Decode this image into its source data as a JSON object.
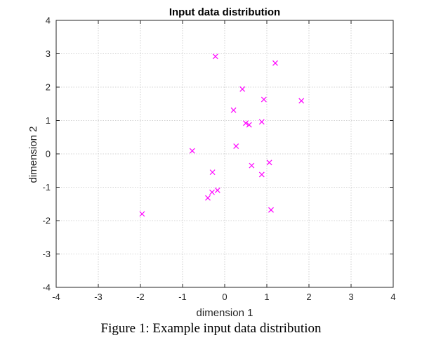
{
  "chart_data": {
    "type": "scatter",
    "title": "Input data distribution",
    "xlabel": "dimension 1",
    "ylabel": "dimension 2",
    "xlim": [
      -4,
      4
    ],
    "ylim": [
      -4,
      4
    ],
    "xticks": [
      -4,
      -3,
      -2,
      -1,
      0,
      1,
      2,
      3,
      4
    ],
    "yticks": [
      -4,
      -3,
      -2,
      -1,
      0,
      1,
      2,
      3,
      4
    ],
    "grid": true,
    "marker": "x",
    "marker_color": "#ff00ff",
    "series": [
      {
        "points": [
          {
            "x": -0.22,
            "y": 2.92
          },
          {
            "x": 1.2,
            "y": 2.72
          },
          {
            "x": 0.42,
            "y": 1.94
          },
          {
            "x": 0.93,
            "y": 1.63
          },
          {
            "x": 1.82,
            "y": 1.59
          },
          {
            "x": 0.21,
            "y": 1.31
          },
          {
            "x": 0.5,
            "y": 0.92
          },
          {
            "x": 0.58,
            "y": 0.87
          },
          {
            "x": 0.88,
            "y": 0.96
          },
          {
            "x": 0.27,
            "y": 0.23
          },
          {
            "x": -0.77,
            "y": 0.09
          },
          {
            "x": 0.64,
            "y": -0.35
          },
          {
            "x": 1.06,
            "y": -0.26
          },
          {
            "x": -0.29,
            "y": -0.55
          },
          {
            "x": 0.88,
            "y": -0.62
          },
          {
            "x": -0.17,
            "y": -1.09
          },
          {
            "x": -0.3,
            "y": -1.15
          },
          {
            "x": -0.4,
            "y": -1.32
          },
          {
            "x": -1.96,
            "y": -1.8
          },
          {
            "x": 1.1,
            "y": -1.68
          }
        ]
      }
    ]
  },
  "figure_caption": "Figure 1: Example input data distribution"
}
